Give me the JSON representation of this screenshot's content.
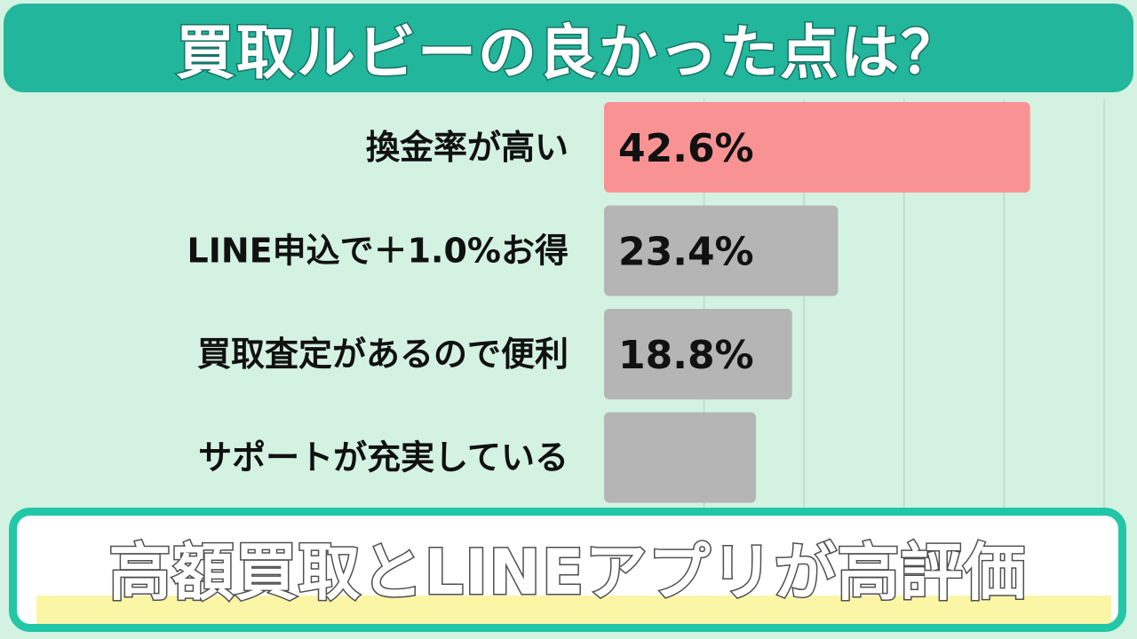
{
  "header": {
    "title": "買取ルビーの良かった点は？"
  },
  "chart_data": {
    "type": "bar",
    "orientation": "horizontal",
    "categories": [
      "換金率が高い",
      "LINE申込で＋1.0%お得",
      "買取査定があるので便利",
      "サポートが充実している"
    ],
    "values": [
      42.6,
      23.4,
      18.8,
      15.2
    ],
    "value_labels": [
      "42.6%",
      "23.4%",
      "18.8%",
      ""
    ],
    "xlim": [
      0,
      50
    ],
    "grid": true,
    "colors": {
      "highlight": "#f99393",
      "default": "#b5b5b5",
      "grid": "#bcd8c9"
    }
  },
  "footer": {
    "text": "高額買取とLINEアプリが高評価"
  }
}
